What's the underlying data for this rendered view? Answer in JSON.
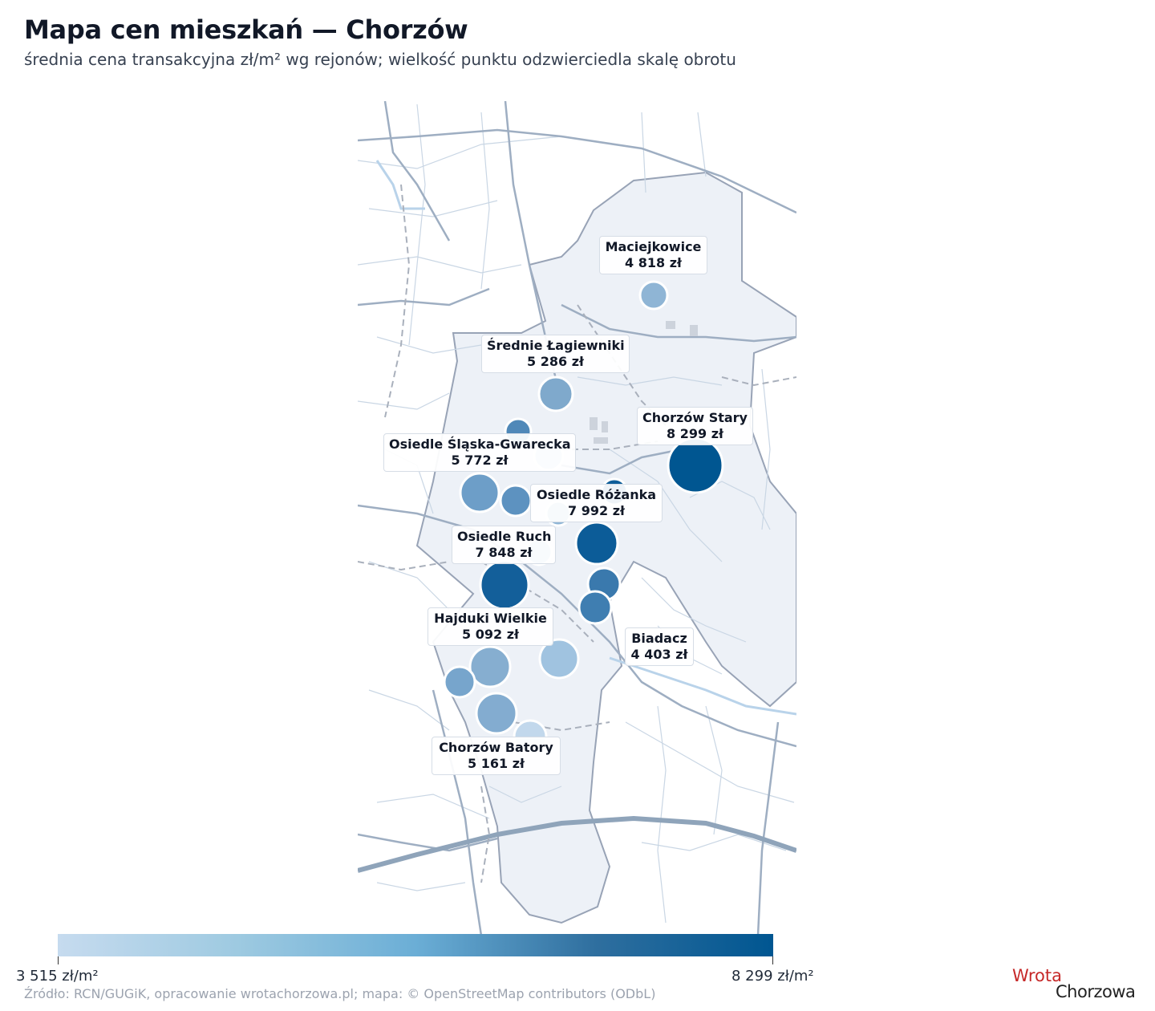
{
  "title": "Mapa cen mieszkań — Chorzów",
  "subtitle": "średnia cena transakcyjna zł/m² wg rejonów; wielkość punktu odzwierciedla skalę obrotu",
  "colorbar": {
    "min_label": "3 515 zł/m²",
    "max_label": "8 299 zł/m²",
    "colors": [
      "#c6dbef",
      "#005691"
    ]
  },
  "source": "Źródło: RCN/GUGiK, opracowanie wrotachorzowa.pl; mapa: © OpenStreetMap contributors (ODbL)",
  "logo": {
    "part1": "Wrota",
    "part2": "Chorzowa"
  },
  "districts": [
    {
      "name": "Maciejkowice",
      "price": "4 818 zł"
    },
    {
      "name": "Średnie Łagiewniki",
      "price": "5 286 zł"
    },
    {
      "name": "Chorzów Stary",
      "price": "8 299 zł"
    },
    {
      "name": "Osiedle Śląska-Gwarecka",
      "price": "5 772 zł"
    },
    {
      "name": "Osiedle Różanka",
      "price": "7 992 zł"
    },
    {
      "name": "Osiedle Ruch",
      "price": "7 848 zł"
    },
    {
      "name": "Hajduki Wielkie",
      "price": "5 092 zł"
    },
    {
      "name": "Biadacz",
      "price": "4 403 zł"
    },
    {
      "name": "Chorzów Batory",
      "price": "5 161 zł"
    }
  ]
}
